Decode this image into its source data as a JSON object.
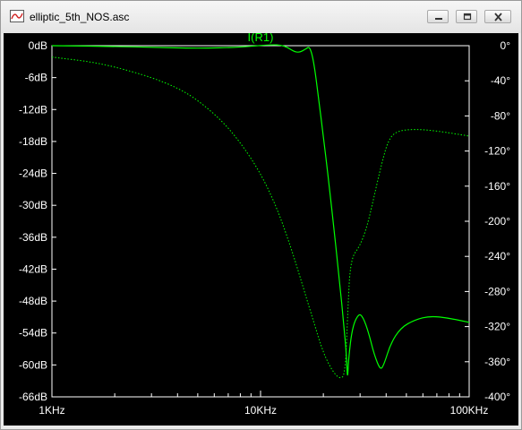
{
  "window": {
    "title": "elliptic_5th_NOS.asc",
    "icon": "waveform-icon",
    "buttons": [
      "minimize-icon",
      "restore-icon",
      "close-icon"
    ]
  },
  "chart_data": {
    "type": "line",
    "title": "I(R1)",
    "x_scale": "log",
    "xlim": [
      1000,
      100000
    ],
    "x_ticks": [
      "1KHz",
      "10KHz",
      "100KHz"
    ],
    "y_left_ticks": [
      "0dB",
      "-6dB",
      "-12dB",
      "-18dB",
      "-24dB",
      "-30dB",
      "-36dB",
      "-42dB",
      "-48dB",
      "-54dB",
      "-60dB",
      "-66dB"
    ],
    "y_left_range": [
      -66,
      0
    ],
    "y_right_ticks": [
      "0°",
      "-40°",
      "-80°",
      "-120°",
      "-160°",
      "-200°",
      "-240°",
      "-280°",
      "-320°",
      "-360°",
      "-400°"
    ],
    "y_right_range": [
      -400,
      0
    ],
    "grid": false,
    "colors": {
      "background": "#000000",
      "trace": "#00ff00",
      "axis_text": "#ffffff",
      "title": "#00ff00"
    },
    "series": [
      {
        "name": "I(R1)",
        "axis": "left",
        "unit": "dB",
        "style": "solid",
        "points": [
          [
            1000,
            0
          ],
          [
            2000,
            -0.15
          ],
          [
            3000,
            -0.3
          ],
          [
            5000,
            -0.5
          ],
          [
            8000,
            -0.3
          ],
          [
            11000,
            0.2
          ],
          [
            13000,
            0.1
          ],
          [
            15000,
            -1.5
          ],
          [
            16500,
            -0.6
          ],
          [
            17200,
            -0.1
          ],
          [
            18000,
            -3
          ],
          [
            19000,
            -10
          ],
          [
            20000,
            -17
          ],
          [
            21000,
            -24
          ],
          [
            22000,
            -31
          ],
          [
            23000,
            -38
          ],
          [
            24000,
            -45
          ],
          [
            25000,
            -52
          ],
          [
            25800,
            -58
          ],
          [
            26100,
            -63
          ],
          [
            26400,
            -59
          ],
          [
            27500,
            -53
          ],
          [
            29500,
            -50.3
          ],
          [
            31000,
            -51
          ],
          [
            33000,
            -54
          ],
          [
            35000,
            -58
          ],
          [
            37500,
            -61
          ],
          [
            39000,
            -60
          ],
          [
            42000,
            -56
          ],
          [
            47000,
            -53
          ],
          [
            55000,
            -51.5
          ],
          [
            65000,
            -50.8
          ],
          [
            80000,
            -51.2
          ],
          [
            100000,
            -52
          ]
        ]
      },
      {
        "name": "I(R1) phase",
        "axis": "right",
        "unit": "°",
        "style": "dotted",
        "points": [
          [
            1000,
            -13
          ],
          [
            1500,
            -18
          ],
          [
            2000,
            -24
          ],
          [
            3000,
            -36
          ],
          [
            4000,
            -48
          ],
          [
            5000,
            -62
          ],
          [
            6500,
            -85
          ],
          [
            8000,
            -110
          ],
          [
            10000,
            -145
          ],
          [
            12000,
            -185
          ],
          [
            14000,
            -230
          ],
          [
            16000,
            -275
          ],
          [
            18000,
            -315
          ],
          [
            20000,
            -350
          ],
          [
            22000,
            -370
          ],
          [
            24000,
            -380
          ],
          [
            25500,
            -374
          ],
          [
            26200,
            -300
          ],
          [
            27000,
            -243
          ],
          [
            30000,
            -228
          ],
          [
            32500,
            -205
          ],
          [
            35000,
            -172
          ],
          [
            38000,
            -135
          ],
          [
            41000,
            -107
          ],
          [
            45000,
            -97
          ],
          [
            55000,
            -95
          ],
          [
            70000,
            -97
          ],
          [
            100000,
            -103
          ]
        ]
      }
    ]
  }
}
